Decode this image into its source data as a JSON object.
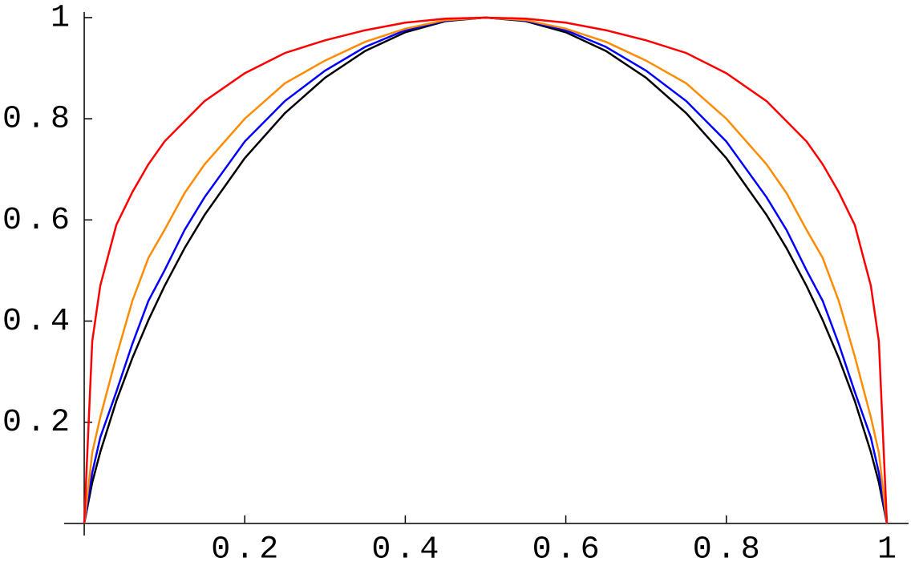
{
  "chart_data": {
    "type": "line",
    "x": [
      0,
      0.01,
      0.02,
      0.04,
      0.06,
      0.08,
      0.1,
      0.125,
      0.15,
      0.2,
      0.25,
      0.3,
      0.35,
      0.4,
      0.45,
      0.5,
      0.55,
      0.6,
      0.65,
      0.7,
      0.75,
      0.8,
      0.85,
      0.875,
      0.9,
      0.92,
      0.94,
      0.96,
      0.98,
      0.99,
      1
    ],
    "series": [
      {
        "color": "#000000",
        "values": [
          0,
          0.081,
          0.141,
          0.242,
          0.327,
          0.402,
          0.469,
          0.544,
          0.61,
          0.722,
          0.811,
          0.881,
          0.934,
          0.971,
          0.993,
          1,
          0.993,
          0.971,
          0.934,
          0.881,
          0.811,
          0.722,
          0.61,
          0.544,
          0.469,
          0.402,
          0.327,
          0.242,
          0.141,
          0.081,
          0
        ]
      },
      {
        "color": "#0000ff",
        "values": [
          0,
          0.1,
          0.17,
          0.26,
          0.355,
          0.44,
          0.5,
          0.58,
          0.645,
          0.755,
          0.835,
          0.895,
          0.942,
          0.975,
          0.994,
          1,
          0.994,
          0.975,
          0.942,
          0.895,
          0.835,
          0.755,
          0.645,
          0.58,
          0.5,
          0.44,
          0.355,
          0.26,
          0.17,
          0.1,
          0
        ]
      },
      {
        "color": "#ff8c00",
        "values": [
          0,
          0.14,
          0.21,
          0.33,
          0.44,
          0.525,
          0.58,
          0.653,
          0.71,
          0.8,
          0.87,
          0.915,
          0.952,
          0.978,
          0.995,
          1,
          0.995,
          0.978,
          0.952,
          0.915,
          0.87,
          0.8,
          0.71,
          0.653,
          0.58,
          0.525,
          0.44,
          0.33,
          0.21,
          0.14,
          0
        ]
      },
      {
        "color": "#ff0000",
        "values": [
          0,
          0.36,
          0.47,
          0.59,
          0.655,
          0.71,
          0.755,
          0.795,
          0.835,
          0.89,
          0.93,
          0.955,
          0.975,
          0.99,
          0.998,
          1,
          0.998,
          0.99,
          0.975,
          0.955,
          0.93,
          0.89,
          0.835,
          0.795,
          0.755,
          0.71,
          0.655,
          0.59,
          0.47,
          0.36,
          0
        ]
      }
    ],
    "xlim": [
      -0.025,
      1.027
    ],
    "ylim": [
      -0.024,
      1.011
    ],
    "xticks": [
      0.2,
      0.4,
      0.6,
      0.8,
      1
    ],
    "yticks": [
      0.2,
      0.4,
      0.6,
      0.8,
      1
    ]
  }
}
